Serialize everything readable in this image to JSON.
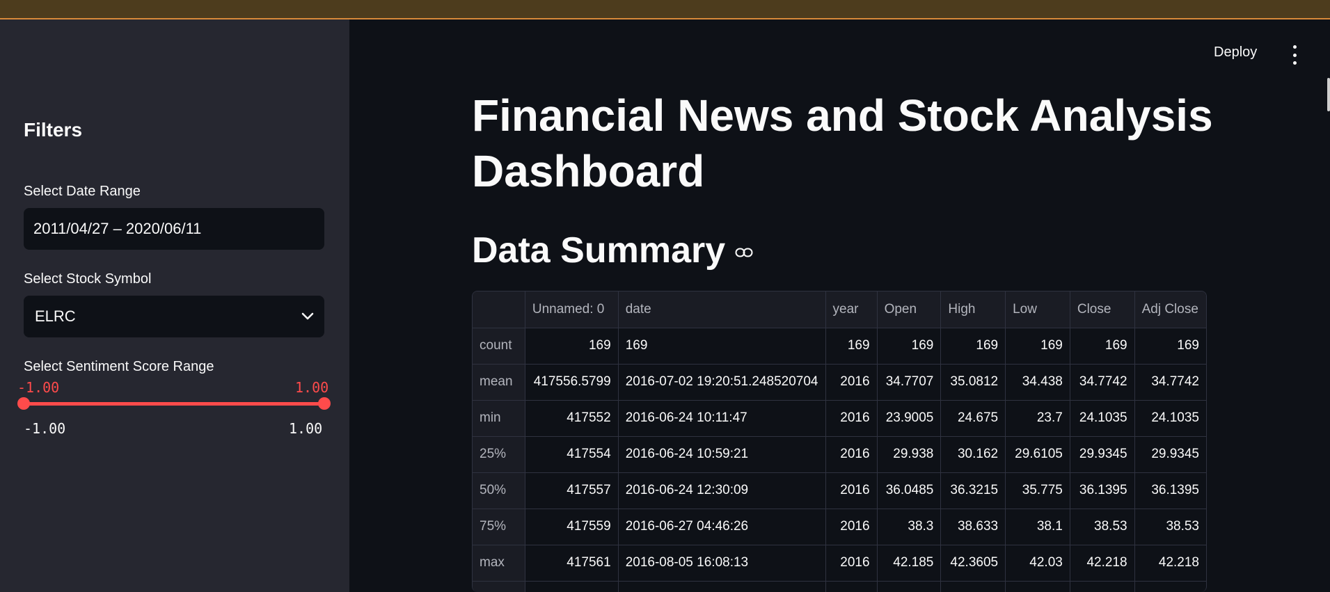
{
  "sidebar": {
    "title": "Filters",
    "date_range": {
      "label": "Select Date Range",
      "value": "2011/04/27 – 2020/06/11"
    },
    "stock_symbol": {
      "label": "Select Stock Symbol",
      "value": "ELRC"
    },
    "sentiment": {
      "label": "Select Sentiment Score Range",
      "low_current": "-1.00",
      "high_current": "1.00",
      "min_label": "-1.00",
      "max_label": "1.00",
      "low_fraction": 0.0,
      "high_fraction": 1.0
    }
  },
  "header": {
    "deploy_label": "Deploy",
    "menu_icon": "kebab-menu-icon"
  },
  "main": {
    "title": "Financial News and Stock Analysis Dashboard",
    "section_title": "Data Summary",
    "section_icon": "link-icon",
    "table": {
      "columns": [
        "",
        "Unnamed: 0",
        "date",
        "year",
        "Open",
        "High",
        "Low",
        "Close",
        "Adj Close"
      ],
      "rows": [
        [
          "count",
          "169",
          "169",
          "169",
          "169",
          "169",
          "169",
          "169",
          "169"
        ],
        [
          "mean",
          "417556.5799",
          "2016-07-02 19:20:51.248520704",
          "2016",
          "34.7707",
          "35.0812",
          "34.438",
          "34.7742",
          "34.7742"
        ],
        [
          "min",
          "417552",
          "2016-06-24 10:11:47",
          "2016",
          "23.9005",
          "24.675",
          "23.7",
          "24.1035",
          "24.1035"
        ],
        [
          "25%",
          "417554",
          "2016-06-24 10:59:21",
          "2016",
          "29.938",
          "30.162",
          "29.6105",
          "29.9345",
          "29.9345"
        ],
        [
          "50%",
          "417557",
          "2016-06-24 12:30:09",
          "2016",
          "36.0485",
          "36.3215",
          "35.775",
          "36.1395",
          "36.1395"
        ],
        [
          "75%",
          "417559",
          "2016-06-27 04:46:26",
          "2016",
          "38.3",
          "38.633",
          "38.1",
          "38.53",
          "38.53"
        ],
        [
          "max",
          "417561",
          "2016-08-05 16:08:13",
          "2016",
          "42.185",
          "42.3605",
          "42.03",
          "42.218",
          "42.218"
        ],
        [
          "",
          "",
          "",
          "",
          "",
          "",
          "",
          "",
          ""
        ]
      ]
    }
  },
  "colors": {
    "accent": "#ff4b4b",
    "sidebar_bg": "#262730",
    "main_bg": "#0e1117"
  }
}
